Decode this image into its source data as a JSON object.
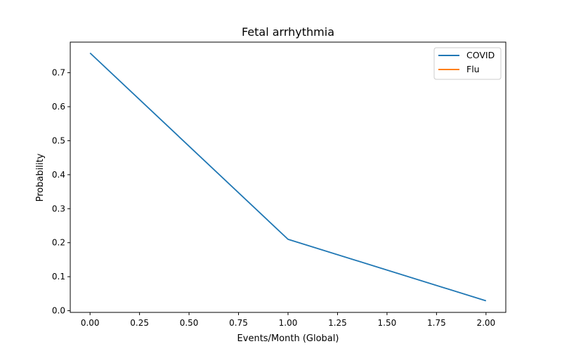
{
  "chart_data": {
    "type": "line",
    "title": "Fetal arrhythmia",
    "xlabel": "Events/Month (Global)",
    "ylabel": "Probability",
    "xlim": [
      -0.1,
      2.1
    ],
    "ylim": [
      -0.005,
      0.79
    ],
    "xticks": [
      "0.00",
      "0.25",
      "0.50",
      "0.75",
      "1.00",
      "1.25",
      "1.50",
      "1.75",
      "2.00"
    ],
    "yticks": [
      "0.0",
      "0.1",
      "0.2",
      "0.3",
      "0.4",
      "0.5",
      "0.6",
      "0.7"
    ],
    "grid": false,
    "legend_position": "top-right",
    "series": [
      {
        "name": "COVID",
        "color": "#1f77b4",
        "x": [
          0,
          1,
          2
        ],
        "y": [
          0.758,
          0.21,
          0.029
        ]
      },
      {
        "name": "Flu",
        "color": "#ff7f0e",
        "x": [],
        "y": []
      }
    ]
  }
}
